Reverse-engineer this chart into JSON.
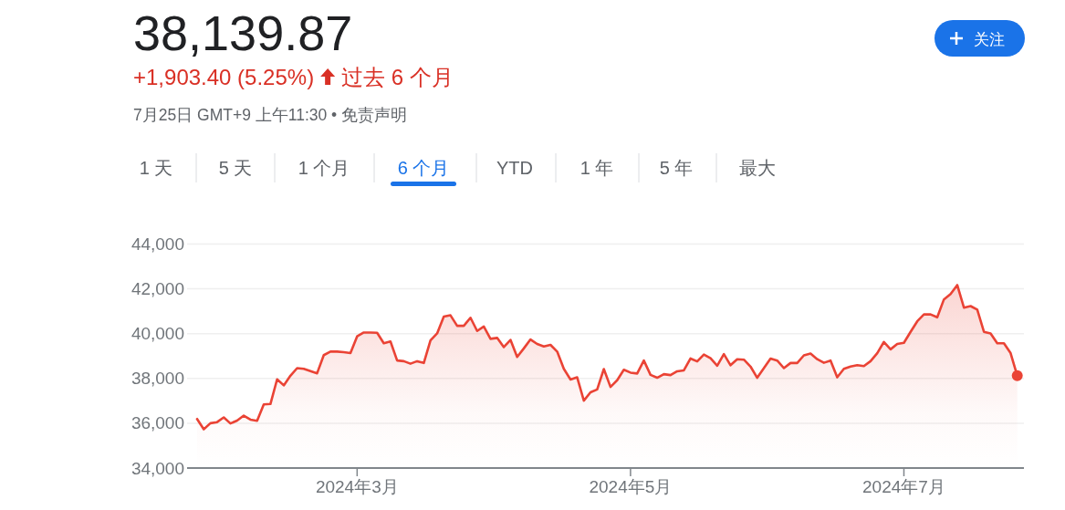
{
  "chart_data": {
    "type": "area",
    "title": "38,139.87",
    "subtitle": "+1,903.40 (5.25%)",
    "annotations": [
      "过去 6 个月",
      "7月25日 GMT+9 上午11:30 • 免责声明",
      "1 天",
      "5 天",
      "1 个月",
      "6 个月",
      "YTD",
      "1 年",
      "5 年",
      "最大",
      "关注"
    ],
    "categories": [
      null,
      null,
      null,
      null,
      null,
      null,
      null,
      null,
      null,
      null,
      null,
      null,
      null,
      null,
      null,
      null,
      null,
      null,
      null,
      null,
      null,
      null,
      null,
      null,
      "2024年3月",
      null,
      null,
      null,
      null,
      null,
      null,
      null,
      null,
      null,
      null,
      null,
      null,
      null,
      null,
      null,
      null,
      null,
      null,
      null,
      null,
      null,
      null,
      null,
      null,
      null,
      null,
      null,
      null,
      null,
      null,
      null,
      null,
      null,
      null,
      null,
      null,
      null,
      null,
      null,
      null,
      "2024年5月",
      null,
      null,
      null,
      null,
      null,
      null,
      null,
      null,
      null,
      null,
      null,
      null,
      null,
      null,
      null,
      null,
      null,
      null,
      null,
      null,
      null,
      null,
      null,
      null,
      null,
      null,
      null,
      null,
      null,
      null,
      null,
      null,
      null,
      null,
      null,
      null,
      null,
      null,
      null,
      null,
      "2024年7月",
      null,
      null,
      null,
      null,
      null,
      null,
      null,
      null,
      null,
      null,
      null,
      null,
      null,
      null,
      null,
      null,
      null
    ],
    "series": [
      {
        "color": "#ea4335",
        "values": [
          36190,
          35730,
          36000,
          36050,
          36260,
          35990,
          36120,
          36340,
          36160,
          36110,
          36840,
          36860,
          37960,
          37690,
          38120,
          38460,
          38430,
          38330,
          38230,
          39040,
          39200,
          39200,
          39170,
          39130,
          39880,
          40050,
          40050,
          40040,
          39570,
          39650,
          38800,
          38770,
          38660,
          38770,
          38690,
          39700,
          40010,
          40760,
          40820,
          40350,
          40350,
          40710,
          40120,
          40320,
          39770,
          39810,
          39400,
          39720,
          38960,
          39340,
          39740,
          39540,
          39430,
          39500,
          39200,
          38430,
          37950,
          38050,
          37010,
          37380,
          37510,
          38420,
          37620,
          37920,
          38390,
          38260,
          38220,
          38800,
          38160,
          38030,
          38190,
          38150,
          38320,
          38360,
          38890,
          38760,
          39070,
          38900,
          38570,
          39090,
          38590,
          38860,
          38840,
          38530,
          38030,
          38460,
          38890,
          38800,
          38460,
          38690,
          38690,
          39030,
          39110,
          38860,
          38700,
          38800,
          38050,
          38430,
          38530,
          38590,
          38550,
          38770,
          39130,
          39630,
          39300,
          39540,
          39590,
          40080,
          40550,
          40860,
          40860,
          40730,
          41530,
          41770,
          42170,
          41160,
          41230,
          41070,
          40080,
          40010,
          39570,
          39570,
          39130,
          38120
        ]
      },
      {
        "type": "scatter",
        "color": "#ea4335",
        "values": [
          null,
          null,
          null,
          null,
          null,
          null,
          null,
          null,
          null,
          null,
          null,
          null,
          null,
          null,
          null,
          null,
          null,
          null,
          null,
          null,
          null,
          null,
          null,
          null,
          null,
          null,
          null,
          null,
          null,
          null,
          null,
          null,
          null,
          null,
          null,
          null,
          null,
          null,
          null,
          null,
          null,
          null,
          null,
          null,
          null,
          null,
          null,
          null,
          null,
          null,
          null,
          null,
          null,
          null,
          null,
          null,
          null,
          null,
          null,
          null,
          null,
          null,
          null,
          null,
          null,
          null,
          null,
          null,
          null,
          null,
          null,
          null,
          null,
          null,
          null,
          null,
          null,
          null,
          null,
          null,
          null,
          null,
          null,
          null,
          null,
          null,
          null,
          null,
          null,
          null,
          null,
          null,
          null,
          null,
          null,
          null,
          null,
          null,
          null,
          null,
          null,
          null,
          null,
          null,
          null,
          null,
          null,
          null,
          null,
          null,
          null,
          null,
          null,
          null,
          null,
          null,
          null,
          null,
          null,
          null,
          null,
          null,
          null,
          38120
        ]
      }
    ],
    "ylim": [
      34000,
      44000
    ],
    "yticks": [
      {
        "value": 34000,
        "label": "34,000"
      },
      {
        "value": 36000,
        "label": "36,000"
      },
      {
        "value": 38000,
        "label": "38,000"
      },
      {
        "value": 40000,
        "label": "40,000"
      },
      {
        "value": 42000,
        "label": "42,000"
      },
      {
        "value": 44000,
        "label": "44,000"
      }
    ],
    "grid": "y"
  }
}
